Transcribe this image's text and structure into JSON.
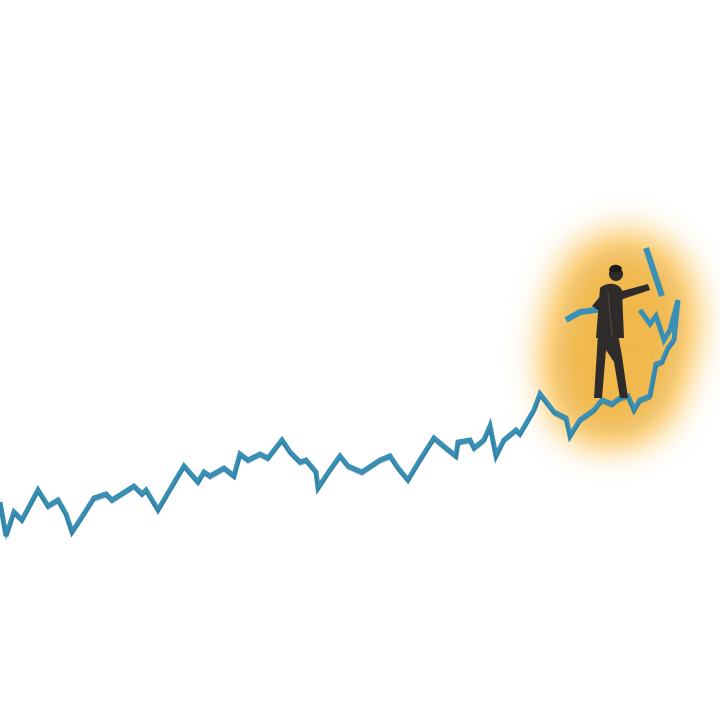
{
  "colors": {
    "background": "#ffffff",
    "trend_line": "#3a8fb4",
    "trend_line_shadow": "#2c7598",
    "glow": "#f8b32e",
    "figure": "#2e2b2a",
    "figure_shadow": "#1c1a1a"
  },
  "subjects": [
    {
      "name": "trend-line",
      "description_icon": "zigzag-line-icon"
    },
    {
      "name": "climbing-figure",
      "description_icon": "person-icon"
    },
    {
      "name": "glow",
      "description_icon": "sun-glow-icon"
    }
  ]
}
